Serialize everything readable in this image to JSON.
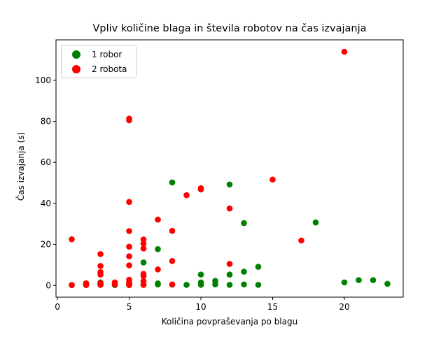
{
  "chart_data": {
    "type": "scatter",
    "title": "Vpliv količine blaga in števila robotov na čas izvajanja",
    "xlabel": "Količina povpraševanja po blagu",
    "ylabel": "Čas izvajanja (s)",
    "xlim": [
      -0.1,
      24.1
    ],
    "ylim": [
      -5.7,
      119.7
    ],
    "xticks": [
      0,
      5,
      10,
      15,
      20
    ],
    "yticks": [
      0,
      20,
      40,
      60,
      80,
      100
    ],
    "legend_position": "top-left",
    "grid": false,
    "series": [
      {
        "name": "1 robor",
        "color": "#008000",
        "points": [
          [
            1,
            0.2
          ],
          [
            2,
            0.3
          ],
          [
            2,
            0.5
          ],
          [
            2,
            1.0
          ],
          [
            3,
            0.3
          ],
          [
            3,
            1.0
          ],
          [
            3,
            1.5
          ],
          [
            4,
            0.2
          ],
          [
            4,
            0.5
          ],
          [
            5,
            0.2
          ],
          [
            5,
            0.8
          ],
          [
            6,
            0.3
          ],
          [
            6,
            11.2
          ],
          [
            7,
            0.5
          ],
          [
            7,
            1.0
          ],
          [
            7,
            17.7
          ],
          [
            8,
            0.4
          ],
          [
            8,
            50.2
          ],
          [
            9,
            0.3
          ],
          [
            10,
            0.3
          ],
          [
            10,
            1.5
          ],
          [
            10,
            5.3
          ],
          [
            11,
            0.5
          ],
          [
            11,
            2.2
          ],
          [
            12,
            0.3
          ],
          [
            12,
            5.3
          ],
          [
            12,
            49.2
          ],
          [
            13,
            0.5
          ],
          [
            13,
            6.7
          ],
          [
            13,
            30.4
          ],
          [
            14,
            0.3
          ],
          [
            14,
            9.1
          ],
          [
            18,
            30.7
          ],
          [
            20,
            1.5
          ],
          [
            21,
            2.6
          ],
          [
            22,
            2.6
          ],
          [
            23,
            0.8
          ]
        ]
      },
      {
        "name": "2 robota",
        "color": "#ff0000",
        "points": [
          [
            1,
            0.2
          ],
          [
            1,
            22.5
          ],
          [
            2,
            0.2
          ],
          [
            2,
            0.5
          ],
          [
            2,
            1.0
          ],
          [
            3,
            0.3
          ],
          [
            3,
            1.2
          ],
          [
            3,
            5.3
          ],
          [
            3,
            6.5
          ],
          [
            3,
            9.5
          ],
          [
            3,
            15.3
          ],
          [
            4,
            0.5
          ],
          [
            4,
            1.5
          ],
          [
            5,
            0.2
          ],
          [
            5,
            0.8
          ],
          [
            5,
            1.5
          ],
          [
            5,
            2.8
          ],
          [
            5,
            9.8
          ],
          [
            5,
            14.2
          ],
          [
            5,
            18.9
          ],
          [
            5,
            26.5
          ],
          [
            5,
            40.7
          ],
          [
            5,
            80.5
          ],
          [
            5,
            81.3
          ],
          [
            6,
            0.3
          ],
          [
            6,
            2.1
          ],
          [
            6,
            4.6
          ],
          [
            6,
            5.6
          ],
          [
            6,
            18.0
          ],
          [
            6,
            20.4
          ],
          [
            6,
            22.4
          ],
          [
            7,
            7.8
          ],
          [
            7,
            32.1
          ],
          [
            8,
            0.5
          ],
          [
            8,
            11.9
          ],
          [
            8,
            26.6
          ],
          [
            9,
            44.0
          ],
          [
            10,
            46.8
          ],
          [
            10,
            47.4
          ],
          [
            12,
            10.5
          ],
          [
            12,
            37.5
          ],
          [
            15,
            51.6
          ],
          [
            17,
            21.9
          ],
          [
            20,
            113.9
          ]
        ]
      }
    ]
  }
}
